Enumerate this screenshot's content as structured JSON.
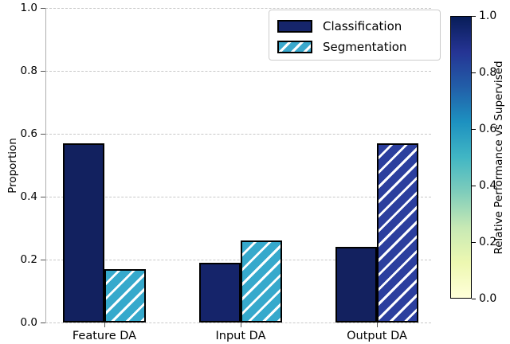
{
  "chart_data": {
    "type": "bar",
    "title": "",
    "xlabel": "",
    "ylabel": "Proportion",
    "ylim": [
      0,
      1
    ],
    "yticks": [
      "0.0",
      "0.2",
      "0.4",
      "0.6",
      "0.8",
      "1.0"
    ],
    "grid": "horizontal dashed",
    "legend_position": "upper right inside plot",
    "categories": [
      "Feature DA",
      "Input DA",
      "Output DA"
    ],
    "series": [
      {
        "name": "Classification",
        "values": [
          0.57,
          0.19,
          0.24
        ],
        "hatch": false,
        "legend_color": "#16256b",
        "colors": [
          "#12215f",
          "#15246a",
          "#13215f"
        ]
      },
      {
        "name": "Segmentation",
        "values": [
          0.17,
          0.26,
          0.57
        ],
        "hatch": true,
        "legend_color": "#3aa8cc",
        "colors": [
          "#36a9cc",
          "#36a9cc",
          "#2c3f9e"
        ]
      }
    ]
  },
  "colorbar": {
    "label": "Relative Performance vs Supervised",
    "ticks": [
      "1.0",
      "0.8",
      "0.6",
      "0.4",
      "0.2",
      "0.0"
    ],
    "gradient_top_to_bottom": [
      "#081d58",
      "#253494",
      "#225ea8",
      "#1d91c0",
      "#41b6c4",
      "#7fcdbb",
      "#c7e9b4",
      "#edf8b1",
      "#ffffd9"
    ]
  },
  "style_colors": {
    "bar_edge": "#000000",
    "gridline": "#c8c8c8",
    "background": "#ffffff"
  }
}
